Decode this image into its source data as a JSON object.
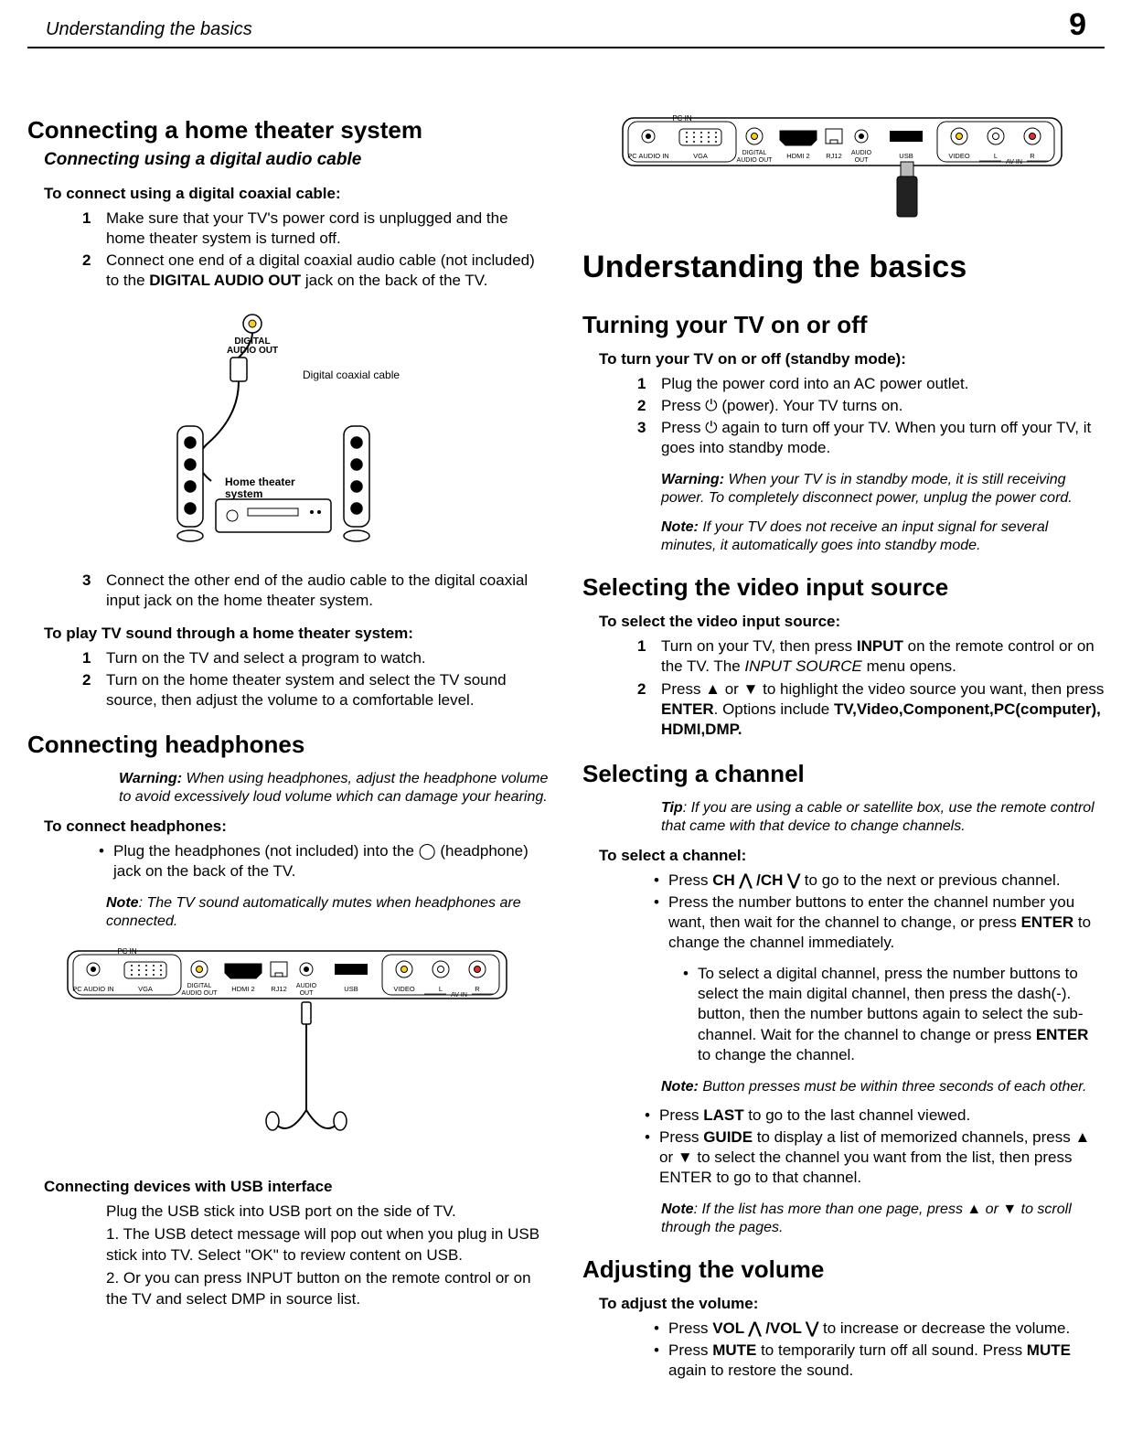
{
  "header": {
    "title": "Understanding the basics",
    "page": "9"
  },
  "left": {
    "h_connect_ht": "Connecting a home theater system",
    "h_digital_cable": "Connecting using a digital audio cable",
    "lead_coax": "To connect using a digital coaxial cable:",
    "coax_steps": [
      "Make sure that your TV's power cord is unplugged and the home theater system is turned off.",
      "Connect one end of a digital coaxial audio cable (not included) to the <b>DIGITAL AUDIO OUT</b> jack on the back of the TV.",
      "Connect the other end of the audio cable to the digital coaxial input jack on the home theater system."
    ],
    "diagram_labels": {
      "digital_audio_out": "DIGITAL\nAUDIO OUT",
      "coax_cable": "Digital coaxial cable",
      "ht_system": "Home theater\nsystem"
    },
    "lead_play": "To play TV sound through a home theater system:",
    "play_steps": [
      "Turn on the TV and select a program to watch.",
      "Turn on the home theater system and select the TV sound source, then adjust the volume to a comfortable level."
    ],
    "h_headphones": "Connecting headphones",
    "hp_warning_lbl": "Warning:",
    "hp_warning": "When using headphones, adjust the headphone volume to avoid excessively loud volume which can damage your hearing.",
    "lead_hp": "To connect headphones:",
    "hp_bullets": [
      "Plug the headphones (not included) into the ◯ (headphone) jack on the back of the TV."
    ],
    "hp_note_lbl": "Note",
    "hp_note": ": The TV sound automatically mutes when headphones are connected.",
    "usb_title": "Connecting devices with USB interface",
    "usb_p1": "Plug the USB stick into USB port on the side of TV.",
    "usb_p2": "1. The USB detect message will pop out when you plug in USB stick into TV. Select \"OK\" to review content on USB.",
    "usb_p3": "2. Or you can press INPUT button on the remote control or on the TV and select DMP in source list."
  },
  "right": {
    "h_main": "Understanding the basics",
    "h_turn": "Turning your TV on or off",
    "lead_turn": "To turn your TV on or off (standby mode):",
    "turn_steps": [
      "Plug the power cord into an AC power outlet.",
      "Press ⏻ (power). Your TV turns on.",
      "Press ⏻ again to turn off your TV. When you turn off your TV, it goes into standby mode."
    ],
    "turn_warn_lbl": "Warning:",
    "turn_warn": "When your TV is in standby mode, it is still receiving power. To completely disconnect power, unplug the power cord.",
    "turn_note_lbl": "Note:",
    "turn_note": "If your TV does not receive an input signal for several minutes, it automatically goes into standby mode.",
    "h_input": "Selecting the video input source",
    "lead_input": "To select the video input source:",
    "input_steps": [
      "Turn on your TV, then press <b>INPUT</b> on the remote control or on the TV. The <i>INPUT SOURCE</i> menu opens.",
      "Press ▲ or ▼ to highlight the video source you want, then press <b>ENTER</b>. Options include <b>TV,Video,Component,PC(computer), HDMI,DMP.</b>"
    ],
    "h_channel": "Selecting a channel",
    "ch_tip_lbl": "Tip",
    "ch_tip": ": If you are using a cable or satellite box, use the remote control that came with that device to change channels.",
    "lead_ch": "To select a channel:",
    "ch_bullets": [
      "Press <b>CH ⋀ /CH ⋁</b> to go to the next or previous channel.",
      "Press the number buttons to enter the channel number you want, then wait for the channel to change, or press <b>ENTER</b> to change the channel immediately."
    ],
    "ch_sub": [
      "To select a digital channel, press the number buttons to select the main digital channel, then press the dash(-). button, then the number buttons again to select the sub-channel. Wait for the channel to change or press <b>ENTER</b> to change the channel."
    ],
    "ch_note_lbl": "Note:",
    "ch_note": "Button presses must be within three seconds of each other.",
    "ch_bullets2": [
      "Press <b>LAST</b> to go to the last channel viewed.",
      "Press <b>GUIDE</b> to display a list of memorized channels, press ▲ or ▼ to select the channel you want from the list, then press ENTER to go to that channel."
    ],
    "ch_note2_lbl": "Note",
    "ch_note2": ": If the list has more than one page, press ▲ or ▼ to scroll through the pages.",
    "h_vol": "Adjusting the volume",
    "lead_vol": "To adjust the volume:",
    "vol_bullets": [
      "Press <b>VOL ⋀ /VOL ⋁</b> to increase or decrease the volume.",
      "Press <b>MUTE</b> to temporarily turn off all sound. Press <b>MUTE</b> again to restore the sound."
    ]
  },
  "port_labels": [
    "PC IN",
    "PC AUDIO IN",
    "VGA",
    "DIGITAL\nAUDIO OUT",
    "HDMI 2",
    "RJ12",
    "AUDIO\nOUT",
    "USB",
    "VIDEO",
    "L",
    "R",
    "AV IN"
  ],
  "colors": {
    "yellow": "#f5d020",
    "red": "#e03030",
    "white": "#ffffff",
    "stroke": "#000000"
  }
}
